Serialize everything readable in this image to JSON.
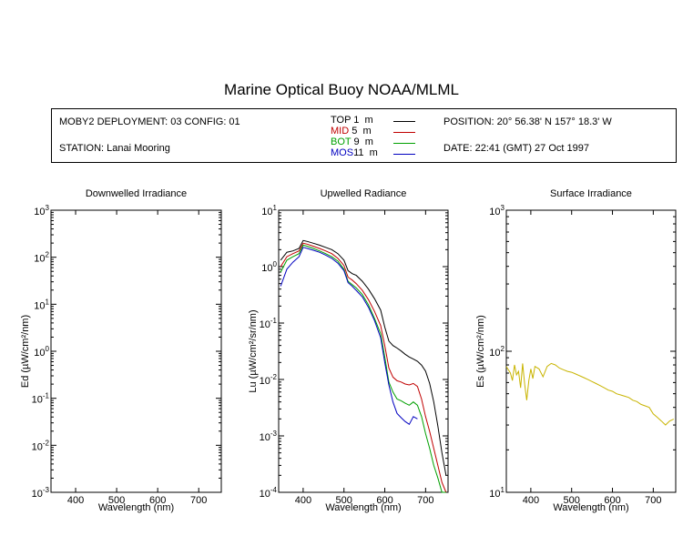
{
  "title": "Marine Optical Buoy NOAA/MLML",
  "info": {
    "deployment": "MOBY2 DEPLOYMENT: 03 CONFIG: 01",
    "station": "STATION: Lanai Mooring",
    "position": "POSITION: 20° 56.38' N   157° 18.3' W",
    "date": "DATE: 22:41 (GMT) 27 Oct 1997"
  },
  "legend": [
    {
      "name": "TOP",
      "depth": " 1  m",
      "color": "#000000"
    },
    {
      "name": "MID",
      "depth": " 5  m",
      "color": "#c00000"
    },
    {
      "name": "BOT",
      "depth": " 9  m",
      "color": "#00a000"
    },
    {
      "name": "MOS",
      "depth": "11  m",
      "color": "#0000c0"
    }
  ],
  "chart_data": [
    {
      "type": "line",
      "title": "Downwelled Irradiance",
      "xlabel": "Wavelength (nm)",
      "ylabel": "Ed  (µW/cm²/nm)",
      "yscale": "log",
      "xlim": [
        340,
        755
      ],
      "ylim": [
        0.001,
        1000
      ],
      "xticks": [
        400,
        500,
        600,
        700
      ],
      "yticks": [
        {
          "base": "10",
          "exp": "3"
        },
        {
          "base": "10",
          "exp": "2"
        },
        {
          "base": "10",
          "exp": "1"
        },
        {
          "base": "10",
          "exp": "0"
        },
        {
          "base": "10",
          "exp": "-1"
        },
        {
          "base": "10",
          "exp": "-2"
        },
        {
          "base": "10",
          "exp": "-3"
        }
      ],
      "series": []
    },
    {
      "type": "line",
      "title": "Upwelled Radiance",
      "xlabel": "Wavelength (nm)",
      "ylabel": "Lu  (µW/cm²/sr/nm)",
      "yscale": "log",
      "xlim": [
        340,
        755
      ],
      "ylim": [
        0.0001,
        10
      ],
      "xticks": [
        400,
        500,
        600,
        700
      ],
      "yticks": [
        {
          "base": "10",
          "exp": "1"
        },
        {
          "base": "10",
          "exp": "0"
        },
        {
          "base": "10",
          "exp": "-1"
        },
        {
          "base": "10",
          "exp": "-2"
        },
        {
          "base": "10",
          "exp": "-3"
        },
        {
          "base": "10",
          "exp": "-4"
        }
      ],
      "series": [
        {
          "name": "TOP",
          "color": "#000000",
          "x": [
            345,
            360,
            375,
            390,
            400,
            410,
            425,
            440,
            455,
            470,
            485,
            500,
            510,
            520,
            530,
            545,
            560,
            575,
            590,
            600,
            610,
            620,
            630,
            640,
            650,
            660,
            670,
            680,
            690,
            700,
            710,
            720,
            730,
            740,
            750
          ],
          "y": [
            1.3,
            1.8,
            1.9,
            2.1,
            2.9,
            2.8,
            2.6,
            2.4,
            2.2,
            2.0,
            1.7,
            1.3,
            0.85,
            0.75,
            0.7,
            0.55,
            0.4,
            0.27,
            0.17,
            0.085,
            0.048,
            0.04,
            0.036,
            0.032,
            0.028,
            0.025,
            0.023,
            0.021,
            0.018,
            0.014,
            0.0085,
            0.004,
            0.0015,
            0.0005,
            0.0002
          ]
        },
        {
          "name": "MID",
          "color": "#c00000",
          "x": [
            345,
            360,
            375,
            390,
            400,
            410,
            425,
            440,
            455,
            470,
            485,
            500,
            510,
            520,
            530,
            545,
            560,
            575,
            590,
            600,
            610,
            620,
            630,
            640,
            650,
            660,
            670,
            680,
            690,
            700,
            710,
            720,
            730,
            740,
            750
          ],
          "y": [
            1.0,
            1.5,
            1.7,
            1.9,
            2.6,
            2.5,
            2.3,
            2.1,
            1.9,
            1.7,
            1.4,
            1.05,
            0.65,
            0.58,
            0.5,
            0.38,
            0.26,
            0.16,
            0.09,
            0.04,
            0.016,
            0.011,
            0.0095,
            0.009,
            0.0083,
            0.008,
            0.0085,
            0.0075,
            0.0045,
            0.0022,
            0.0012,
            0.0006,
            0.0003,
            0.00015,
            0.0001
          ]
        },
        {
          "name": "BOT",
          "color": "#00a000",
          "x": [
            345,
            360,
            375,
            390,
            400,
            410,
            425,
            440,
            455,
            470,
            485,
            500,
            510,
            520,
            530,
            545,
            560,
            575,
            590,
            600,
            610,
            620,
            630,
            640,
            650,
            660,
            670,
            680,
            690,
            700,
            710,
            720,
            730,
            740,
            750
          ],
          "y": [
            0.8,
            1.3,
            1.5,
            1.7,
            2.4,
            2.3,
            2.1,
            1.9,
            1.7,
            1.5,
            1.25,
            0.9,
            0.55,
            0.48,
            0.42,
            0.32,
            0.21,
            0.12,
            0.065,
            0.025,
            0.009,
            0.006,
            0.0045,
            0.0042,
            0.0038,
            0.0035,
            0.004,
            0.0035,
            0.0022,
            0.0011,
            0.0006,
            0.0003,
            0.00018,
            0.0001,
            0.0001
          ]
        },
        {
          "name": "MOS",
          "color": "#0000c0",
          "x": [
            345,
            360,
            375,
            390,
            400,
            410,
            425,
            440,
            455,
            470,
            485,
            500,
            510,
            520,
            530,
            545,
            560,
            575,
            590,
            600,
            610,
            620,
            630,
            640,
            650,
            660,
            670,
            680
          ],
          "y": [
            0.45,
            0.9,
            1.2,
            1.5,
            2.2,
            2.1,
            1.95,
            1.8,
            1.6,
            1.4,
            1.15,
            0.85,
            0.52,
            0.45,
            0.38,
            0.29,
            0.19,
            0.11,
            0.055,
            0.02,
            0.008,
            0.004,
            0.0025,
            0.0021,
            0.0018,
            0.0016,
            0.0022,
            0.002
          ]
        }
      ]
    },
    {
      "type": "line",
      "title": "Surface Irradiance",
      "xlabel": "Wavelength (nm)",
      "ylabel": "Es  (µW/cm²/nm)",
      "yscale": "log",
      "xlim": [
        340,
        755
      ],
      "ylim": [
        10,
        1000
      ],
      "xticks": [
        400,
        500,
        600,
        700
      ],
      "yticks": [
        {
          "base": "10",
          "exp": "3"
        },
        {
          "base": "10",
          "exp": "2"
        },
        {
          "base": "10",
          "exp": "1"
        }
      ],
      "series": [
        {
          "name": "Es",
          "color": "#c8b400",
          "x": [
            340,
            350,
            355,
            360,
            365,
            370,
            375,
            380,
            385,
            390,
            395,
            400,
            405,
            410,
            420,
            430,
            440,
            450,
            460,
            470,
            480,
            490,
            500,
            510,
            520,
            530,
            540,
            550,
            560,
            570,
            580,
            590,
            600,
            610,
            620,
            630,
            640,
            650,
            660,
            670,
            680,
            690,
            700,
            710,
            720,
            730,
            740,
            750
          ],
          "y": [
            78,
            70,
            62,
            80,
            68,
            72,
            55,
            82,
            58,
            45,
            62,
            75,
            64,
            78,
            75,
            66,
            78,
            82,
            80,
            76,
            74,
            72,
            71,
            69,
            67,
            65,
            63,
            61,
            59,
            57,
            55,
            53,
            52,
            50,
            49,
            48,
            47,
            45,
            44,
            42,
            41,
            40,
            36,
            34,
            32,
            30,
            32,
            33
          ]
        }
      ]
    }
  ]
}
